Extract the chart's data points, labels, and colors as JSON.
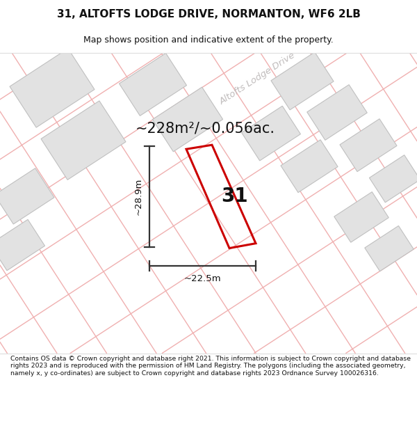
{
  "title_line1": "31, ALTOFTS LODGE DRIVE, NORMANTON, WF6 2LB",
  "title_line2": "Map shows position and indicative extent of the property.",
  "area_text": "~228m²/~0.056ac.",
  "property_number": "31",
  "dim_width": "~22.5m",
  "dim_height": "~28.9m",
  "road_label": "Altofts Lodge Drive",
  "footer_text": "Contains OS data © Crown copyright and database right 2021. This information is subject to Crown copyright and database rights 2023 and is reproduced with the permission of HM Land Registry. The polygons (including the associated geometry, namely x, y co-ordinates) are subject to Crown copyright and database rights 2023 Ordnance Survey 100026316.",
  "map_bg": "#f8f6f6",
  "property_color": "#cc0000",
  "building_fill": "#e2e2e2",
  "building_edge": "#c0c0c0",
  "road_line_color": "#f0b0b0",
  "road_label_color": "#c0bcbc",
  "dim_line_color": "#333333"
}
